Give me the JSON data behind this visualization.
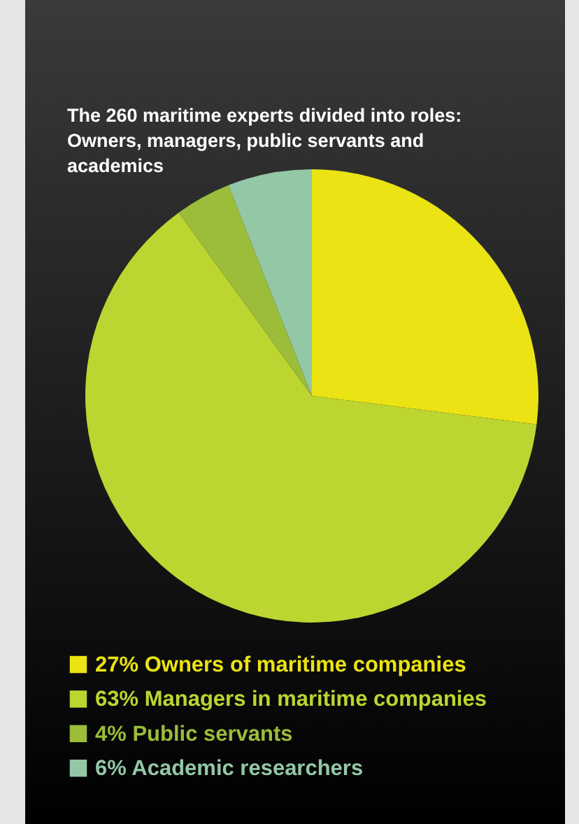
{
  "chart_data": {
    "type": "pie",
    "title": "The 260 maritime experts divided into roles: Owners, managers, public servants and academics",
    "categories": [
      "Owners of maritime companies",
      "Managers in maritime companies",
      "Public servants",
      "Academic researchers"
    ],
    "values": [
      27,
      63,
      4,
      6
    ],
    "value_labels": [
      "27%",
      "63%",
      "4%",
      "6%"
    ],
    "colors": [
      "#ebe313",
      "#bdd530",
      "#9bbd3a",
      "#93c8a6"
    ],
    "legend": "bottom"
  }
}
